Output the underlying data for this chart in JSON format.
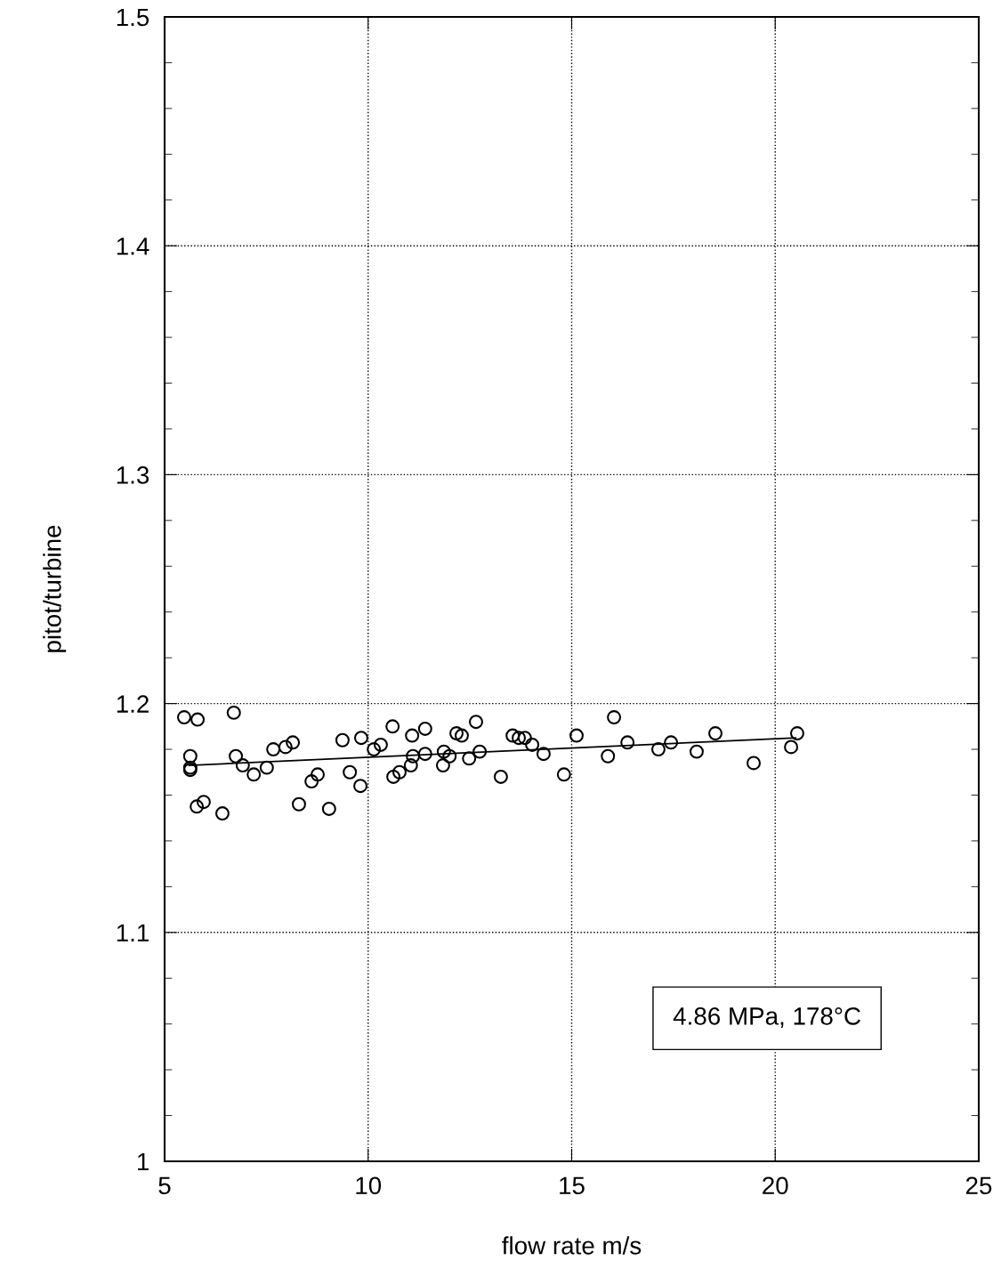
{
  "chart_data": {
    "type": "scatter",
    "xlabel": "flow rate m/s",
    "ylabel": "pitot/turbine",
    "xlim": [
      5,
      25
    ],
    "ylim": [
      1,
      1.5
    ],
    "xticks": [
      5,
      10,
      15,
      20,
      25
    ],
    "yticks": [
      1,
      1.1,
      1.2,
      1.3,
      1.4,
      1.5
    ],
    "grid": true,
    "marker": "circle",
    "annotations": [
      "4.86 MPa, 178°C"
    ],
    "series": [
      {
        "color": "#000000",
        "x": [
          5.48,
          5.63,
          5.63,
          5.63,
          5.81,
          5.79,
          5.96,
          6.42,
          6.7,
          6.75,
          6.92,
          7.19,
          7.51,
          7.67,
          7.97,
          8.15,
          8.3,
          8.61,
          8.76,
          9.04,
          9.37,
          9.55,
          9.81,
          9.83,
          10.14,
          10.31,
          10.6,
          10.62,
          10.77,
          11.05,
          11.08,
          11.1,
          11.4,
          11.4,
          11.84,
          11.86,
          12.0,
          12.17,
          12.3,
          12.48,
          12.65,
          12.74,
          13.26,
          13.55,
          13.7,
          13.85,
          14.03,
          14.31,
          14.81,
          15.12,
          15.89,
          16.04,
          16.37,
          17.13,
          17.44,
          18.07,
          18.53,
          19.47,
          20.39,
          20.54
        ],
        "values": [
          1.194,
          1.177,
          1.172,
          1.171,
          1.193,
          1.155,
          1.157,
          1.152,
          1.196,
          1.177,
          1.173,
          1.169,
          1.172,
          1.18,
          1.181,
          1.183,
          1.156,
          1.166,
          1.169,
          1.154,
          1.184,
          1.17,
          1.164,
          1.185,
          1.18,
          1.182,
          1.19,
          1.168,
          1.17,
          1.173,
          1.186,
          1.177,
          1.189,
          1.178,
          1.173,
          1.179,
          1.177,
          1.187,
          1.186,
          1.176,
          1.192,
          1.179,
          1.168,
          1.186,
          1.185,
          1.185,
          1.182,
          1.178,
          1.169,
          1.186,
          1.177,
          1.194,
          1.183,
          1.18,
          1.183,
          1.179,
          1.187,
          1.174,
          1.181,
          1.187
        ]
      },
      {
        "type": "line",
        "color": "#000000",
        "marker": "none",
        "line_style": "solid",
        "x": [
          5.6,
          20.5
        ],
        "values": [
          1.173,
          1.185
        ]
      }
    ]
  }
}
